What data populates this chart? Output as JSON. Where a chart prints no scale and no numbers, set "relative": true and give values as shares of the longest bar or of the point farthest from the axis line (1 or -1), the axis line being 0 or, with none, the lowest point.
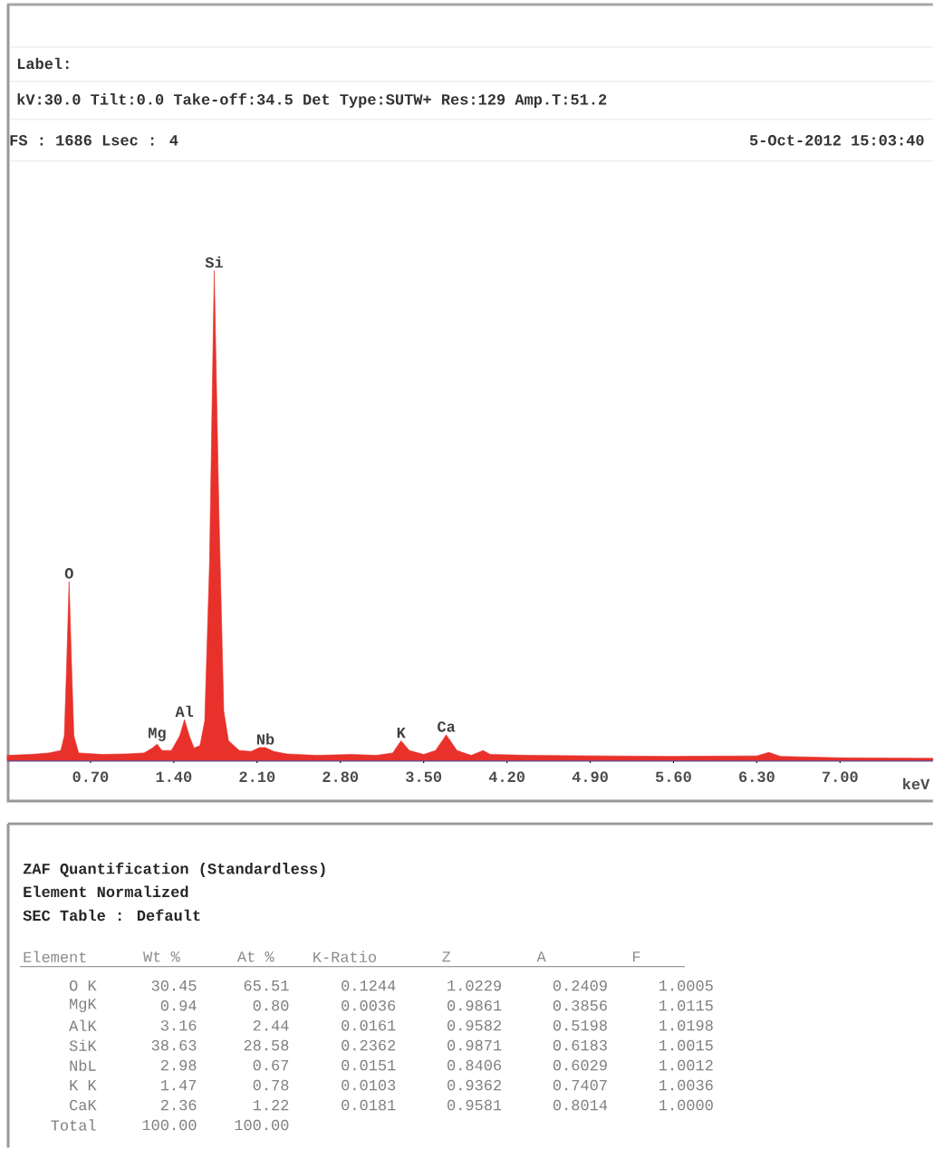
{
  "chart_data": {
    "type": "area",
    "relative": true,
    "color": "#e8312a",
    "xlabel": "keV",
    "x": [
      0.0,
      0.2,
      0.35,
      0.45,
      0.48,
      0.5,
      0.52,
      0.54,
      0.56,
      0.6,
      0.8,
      1.0,
      1.15,
      1.22,
      1.26,
      1.3,
      1.38,
      1.45,
      1.49,
      1.53,
      1.57,
      1.62,
      1.66,
      1.7,
      1.74,
      1.78,
      1.82,
      1.86,
      1.95,
      2.05,
      2.12,
      2.17,
      2.24,
      2.35,
      2.6,
      2.9,
      3.1,
      3.24,
      3.31,
      3.38,
      3.5,
      3.6,
      3.69,
      3.78,
      3.9,
      4.0,
      4.06,
      4.4,
      5.0,
      5.6,
      6.3,
      6.4,
      6.5,
      7.0,
      7.78
    ],
    "values": [
      0.01,
      0.012,
      0.015,
      0.02,
      0.05,
      0.2,
      0.365,
      0.2,
      0.05,
      0.015,
      0.012,
      0.013,
      0.015,
      0.025,
      0.033,
      0.02,
      0.02,
      0.05,
      0.083,
      0.05,
      0.025,
      0.03,
      0.08,
      0.4,
      1.0,
      0.5,
      0.1,
      0.04,
      0.02,
      0.018,
      0.026,
      0.026,
      0.018,
      0.013,
      0.01,
      0.012,
      0.01,
      0.015,
      0.04,
      0.02,
      0.012,
      0.02,
      0.052,
      0.02,
      0.01,
      0.02,
      0.012,
      0.01,
      0.009,
      0.008,
      0.009,
      0.016,
      0.008,
      0.005,
      0.004
    ],
    "xlim": [
      0,
      7.78
    ],
    "xticks": [
      {
        "value": 0.7,
        "label": "0.70"
      },
      {
        "value": 1.4,
        "label": "1.40"
      },
      {
        "value": 2.1,
        "label": "2.10"
      },
      {
        "value": 2.8,
        "label": "2.80"
      },
      {
        "value": 3.5,
        "label": "3.50"
      },
      {
        "value": 4.2,
        "label": "4.20"
      },
      {
        "value": 4.9,
        "label": "4.90"
      },
      {
        "value": 5.6,
        "label": "5.60"
      },
      {
        "value": 6.3,
        "label": "6.30"
      },
      {
        "value": 7.0,
        "label": "7.00"
      }
    ],
    "annotations": [
      {
        "text": "O",
        "x": 0.52,
        "y": 0.365
      },
      {
        "text": "Mg",
        "x": 1.26,
        "y": 0.033
      },
      {
        "text": "Al",
        "x": 1.49,
        "y": 0.083
      },
      {
        "text": "Si",
        "x": 1.74,
        "y": 1.0
      },
      {
        "text": "Nb",
        "x": 2.17,
        "y": 0.026
      },
      {
        "text": "K",
        "x": 3.31,
        "y": 0.04
      },
      {
        "text": "Ca",
        "x": 3.69,
        "y": 0.052
      },
      "Label:",
      "kV:30.0 Tilt:0.0 Take-off:34.5  Det Type:SUTW+ Res:129 Amp.T:51.2",
      "FS : 1686  Lsec : 4",
      "5-Oct-2012 15:03:40",
      "ZAF Quantification (Standardless)",
      "Element Normalized",
      "SEC Table : Default",
      "Element",
      "Wt %",
      "At %",
      "K-Ratio",
      "Z",
      "A",
      "F",
      "O K",
      "30.45",
      "65.51",
      "0.1244",
      "1.0229",
      "0.2409",
      "1.0005",
      "MgK",
      "0.94",
      "0.80",
      "0.0036",
      "0.9861",
      "0.3856",
      "1.0115",
      "AlK",
      "3.16",
      "2.44",
      "0.0161",
      "0.9582",
      "0.5198",
      "1.0198",
      "SiK",
      "38.63",
      "28.58",
      "0.2362",
      "0.9871",
      "0.6183",
      "1.0015",
      "NbL",
      "2.98",
      "0.67",
      "0.0151",
      "0.8406",
      "0.6029",
      "1.0012",
      "K K",
      "1.47",
      "0.78",
      "0.0103",
      "0.9362",
      "0.7407",
      "1.0036",
      "CaK",
      "2.36",
      "1.22",
      "0.0181",
      "0.9581",
      "0.8014",
      "1.0000",
      "Total",
      "100.00",
      "100.00"
    ]
  }
}
